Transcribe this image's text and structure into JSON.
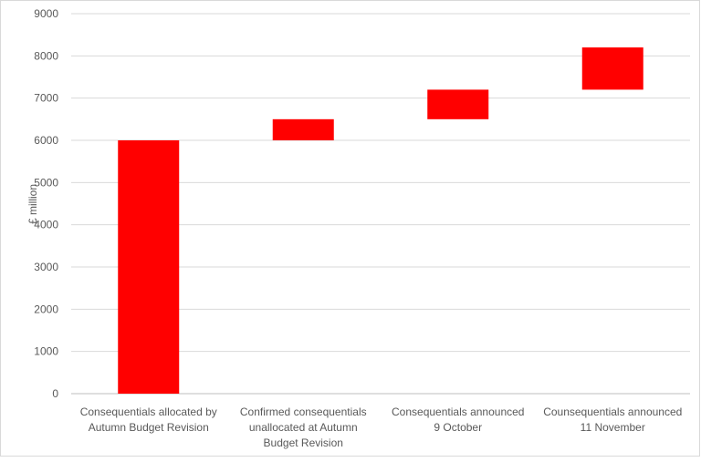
{
  "chart_data": {
    "type": "bar",
    "variant": "waterfall",
    "title": "",
    "xlabel": "",
    "ylabel": "£ million",
    "ylim": [
      0,
      9000
    ],
    "yticks": [
      0,
      1000,
      2000,
      3000,
      4000,
      5000,
      6000,
      7000,
      8000,
      9000
    ],
    "grid": true,
    "legend": "none",
    "bar_color": "#ff0000",
    "categories": [
      [
        "Consequentials allocated by",
        "Autumn Budget Revision"
      ],
      [
        "Confirmed consequentials",
        "unallocated at Autumn",
        "Budget Revision"
      ],
      [
        "Consequentials announced",
        "9 October"
      ],
      [
        "Counsequentials announced",
        "11 November"
      ]
    ],
    "bars": [
      {
        "base": 0,
        "top": 6000
      },
      {
        "base": 6000,
        "top": 6500
      },
      {
        "base": 6500,
        "top": 7200
      },
      {
        "base": 7200,
        "top": 8200
      }
    ]
  }
}
